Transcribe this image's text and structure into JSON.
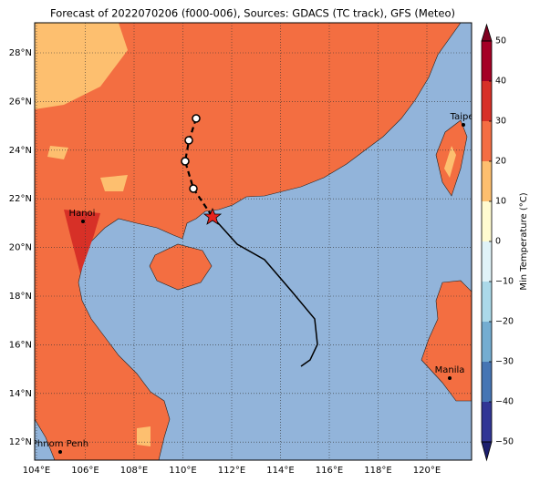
{
  "title": "Forecast of 2022070206 (f000-006), Sources: GDACS (TC track), GFS (Meteo)",
  "lon_ticks": [
    {
      "value": 104,
      "label": "104°E"
    },
    {
      "value": 106,
      "label": "106°E"
    },
    {
      "value": 108,
      "label": "108°E"
    },
    {
      "value": 110,
      "label": "110°E"
    },
    {
      "value": 112,
      "label": "112°E"
    },
    {
      "value": 114,
      "label": "114°E"
    },
    {
      "value": 116,
      "label": "116°E"
    },
    {
      "value": 118,
      "label": "118°E"
    },
    {
      "value": 120,
      "label": "120°E"
    }
  ],
  "lat_ticks": [
    {
      "value": 12,
      "label": "12°N"
    },
    {
      "value": 14,
      "label": "14°N"
    },
    {
      "value": 16,
      "label": "16°N"
    },
    {
      "value": 18,
      "label": "18°N"
    },
    {
      "value": 20,
      "label": "20°N"
    },
    {
      "value": 22,
      "label": "22°N"
    },
    {
      "value": 24,
      "label": "24°N"
    },
    {
      "value": 26,
      "label": "26°N"
    },
    {
      "value": 28,
      "label": "28°N"
    }
  ],
  "cities": [
    {
      "name": "Hanoi"
    },
    {
      "name": "Taipei"
    },
    {
      "name": "Manila"
    },
    {
      "name": "Phnom Penh"
    }
  ],
  "colorbar": {
    "label": "Min Temperature (°C)",
    "ticks": [
      {
        "value": -50,
        "label": "−50"
      },
      {
        "value": -40,
        "label": "−40"
      },
      {
        "value": -30,
        "label": "−30"
      },
      {
        "value": -20,
        "label": "−20"
      },
      {
        "value": -10,
        "label": "−10"
      },
      0,
      10,
      20,
      30,
      40,
      50
    ],
    "colors": [
      "#313695",
      "#4575b4",
      "#74add1",
      "#abd9e9",
      "#e0f3f8",
      "#fffbd0",
      "#fdbf6f",
      "#f46d43",
      "#d73027",
      "#a50026"
    ]
  }
}
